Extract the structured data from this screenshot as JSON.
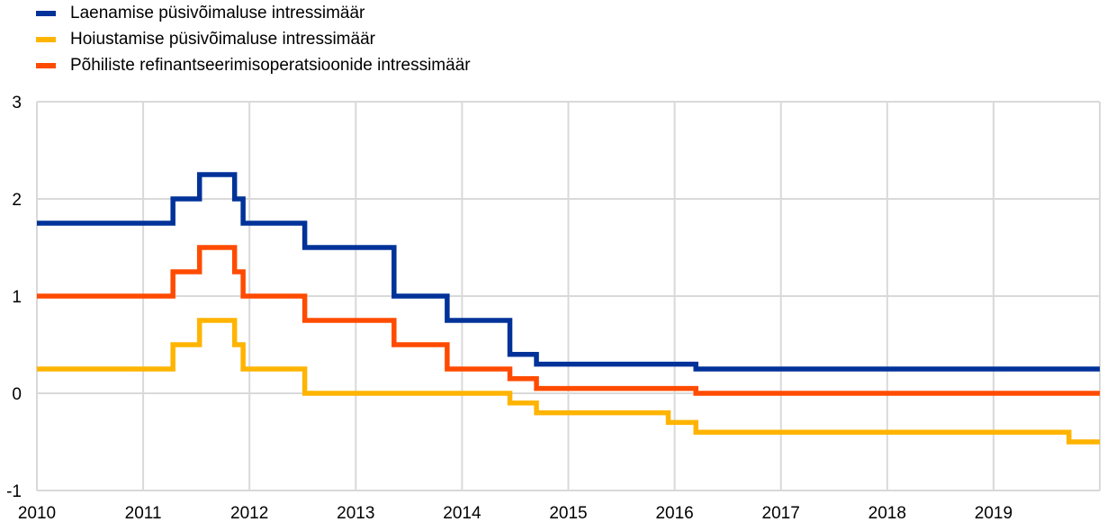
{
  "chart_data": {
    "type": "line",
    "step": true,
    "xlim": [
      2010.0,
      2020.0
    ],
    "ylim": [
      -1,
      3
    ],
    "x_ticks": [
      "2010",
      "2011",
      "2012",
      "2013",
      "2014",
      "2015",
      "2016",
      "2017",
      "2018",
      "2019"
    ],
    "y_ticks": [
      "-1",
      "0",
      "1",
      "2",
      "3"
    ],
    "grid": true,
    "legend_position": "top-left",
    "series": [
      {
        "name": "Laenamise püsivõimaluse intressimäär",
        "color": "#003299",
        "x": [
          2010.0,
          2011.28,
          2011.53,
          2011.86,
          2011.94,
          2012.52,
          2013.36,
          2013.86,
          2014.45,
          2014.7,
          2016.2,
          2020.0
        ],
        "values": [
          1.75,
          2.0,
          2.25,
          2.0,
          1.75,
          1.5,
          1.0,
          0.75,
          0.4,
          0.3,
          0.25,
          0.25
        ]
      },
      {
        "name": "Hoiustamise püsivõimaluse intressimäär",
        "color": "#FFB400",
        "x": [
          2010.0,
          2011.28,
          2011.53,
          2011.86,
          2011.94,
          2012.52,
          2014.45,
          2014.7,
          2015.94,
          2016.2,
          2019.71,
          2020.0
        ],
        "values": [
          0.25,
          0.5,
          0.75,
          0.5,
          0.25,
          0.0,
          -0.1,
          -0.2,
          -0.3,
          -0.4,
          -0.5,
          -0.5
        ]
      },
      {
        "name": "Põhiliste refinantseerimisoperatsioonide intressimäär",
        "color": "#FF4B00",
        "x": [
          2010.0,
          2011.28,
          2011.53,
          2011.86,
          2011.94,
          2012.52,
          2013.36,
          2013.86,
          2014.45,
          2014.7,
          2016.2,
          2020.0
        ],
        "values": [
          1.0,
          1.25,
          1.5,
          1.25,
          1.0,
          0.75,
          0.5,
          0.25,
          0.15,
          0.05,
          0.0,
          0.0
        ]
      }
    ]
  }
}
